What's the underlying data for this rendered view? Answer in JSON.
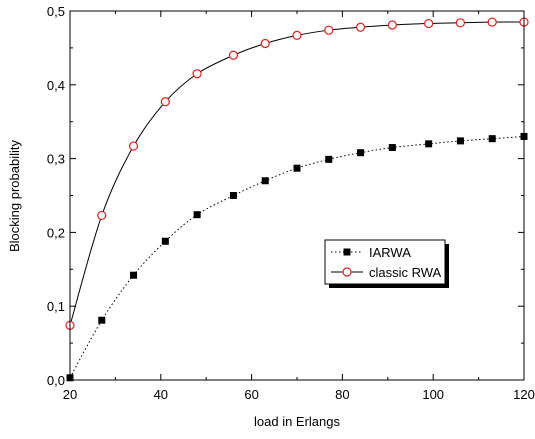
{
  "chart_data": {
    "type": "line",
    "title": "",
    "xlabel": "load in Erlangs",
    "ylabel": "Blocking probability",
    "xlim": [
      20,
      120
    ],
    "ylim": [
      0.0,
      0.5
    ],
    "xticks": [
      20,
      40,
      60,
      80,
      100,
      120
    ],
    "xtick_labels": [
      "20",
      "40",
      "60",
      "80",
      "100",
      "120"
    ],
    "yticks": [
      0.0,
      0.1,
      0.2,
      0.3,
      0.4,
      0.5
    ],
    "ytick_labels": [
      "0,0",
      "0,1",
      "0,2",
      "0,3",
      "0,4",
      "0,5"
    ],
    "grid": false,
    "legend_position": "center-right",
    "x": [
      20,
      27,
      34,
      41,
      48,
      56,
      63,
      70,
      77,
      84,
      91,
      99,
      106,
      113,
      120
    ],
    "series": [
      {
        "name": "IARWA",
        "marker": "filled-square",
        "line_style": "dotted",
        "color": "#000000",
        "values": [
          0.003,
          0.081,
          0.142,
          0.188,
          0.224,
          0.25,
          0.27,
          0.287,
          0.299,
          0.308,
          0.315,
          0.32,
          0.324,
          0.327,
          0.33
        ]
      },
      {
        "name": "classic RWA",
        "marker": "open-circle",
        "line_style": "solid",
        "color": "#000000",
        "marker_color": "#e02020",
        "values": [
          0.074,
          0.223,
          0.317,
          0.377,
          0.415,
          0.44,
          0.456,
          0.467,
          0.474,
          0.478,
          0.481,
          0.483,
          0.484,
          0.485,
          0.485
        ]
      }
    ]
  }
}
